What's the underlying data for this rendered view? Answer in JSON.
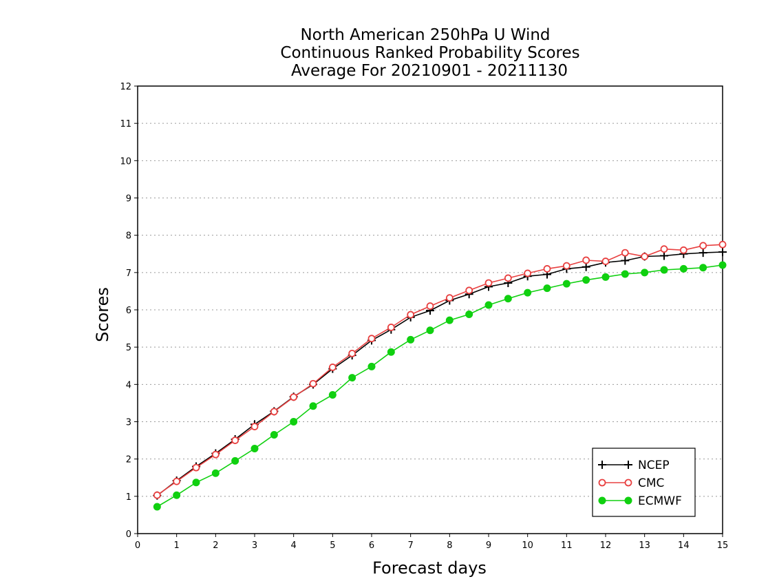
{
  "chart_data": {
    "type": "line",
    "title": [
      "North American 250hPa U Wind",
      "Continuous Ranked Probability Scores",
      "Average For 20210901 - 20211130"
    ],
    "xlabel": "Forecast days",
    "ylabel": "Scores",
    "xlim": [
      0,
      15
    ],
    "ylim": [
      0,
      12
    ],
    "xticks": [
      "0",
      "1",
      "2",
      "3",
      "4",
      "5",
      "6",
      "7",
      "8",
      "9",
      "10",
      "11",
      "12",
      "13",
      "14",
      "15"
    ],
    "yticks": [
      "0",
      "1",
      "2",
      "3",
      "4",
      "5",
      "6",
      "7",
      "8",
      "9",
      "10",
      "11",
      "12"
    ],
    "grid": true,
    "legend_position": "bottom-right",
    "x": [
      0.5,
      1,
      1.5,
      2,
      2.5,
      3,
      3.5,
      4,
      4.5,
      5,
      5.5,
      6,
      6.5,
      7,
      7.5,
      8,
      8.5,
      9,
      9.5,
      10,
      10.5,
      11,
      11.5,
      12,
      12.5,
      13,
      13.5,
      14,
      14.5,
      15
    ],
    "series": [
      {
        "name": "NCEP",
        "color": "#000000",
        "marker": "plus",
        "values": [
          1.02,
          1.42,
          1.8,
          2.15,
          2.53,
          2.93,
          3.28,
          3.67,
          4.0,
          4.42,
          4.78,
          5.18,
          5.47,
          5.8,
          5.98,
          6.25,
          6.42,
          6.62,
          6.72,
          6.9,
          6.95,
          7.1,
          7.15,
          7.27,
          7.32,
          7.43,
          7.45,
          7.5,
          7.53,
          7.55
        ]
      },
      {
        "name": "CMC",
        "color": "#e84040",
        "marker": "open-circle",
        "values": [
          1.03,
          1.4,
          1.77,
          2.12,
          2.5,
          2.87,
          3.27,
          3.66,
          4.02,
          4.46,
          4.83,
          5.23,
          5.53,
          5.87,
          6.1,
          6.32,
          6.52,
          6.72,
          6.85,
          6.98,
          7.1,
          7.18,
          7.33,
          7.3,
          7.53,
          7.43,
          7.63,
          7.6,
          7.72,
          7.75
        ]
      },
      {
        "name": "ECMWF",
        "color": "#10d010",
        "marker": "filled-circle",
        "values": [
          0.72,
          1.03,
          1.37,
          1.62,
          1.95,
          2.28,
          2.65,
          3.0,
          3.42,
          3.72,
          4.18,
          4.48,
          4.87,
          5.2,
          5.45,
          5.72,
          5.88,
          6.13,
          6.3,
          6.46,
          6.58,
          6.7,
          6.8,
          6.88,
          6.96,
          7.0,
          7.07,
          7.1,
          7.13,
          7.2
        ]
      }
    ]
  }
}
